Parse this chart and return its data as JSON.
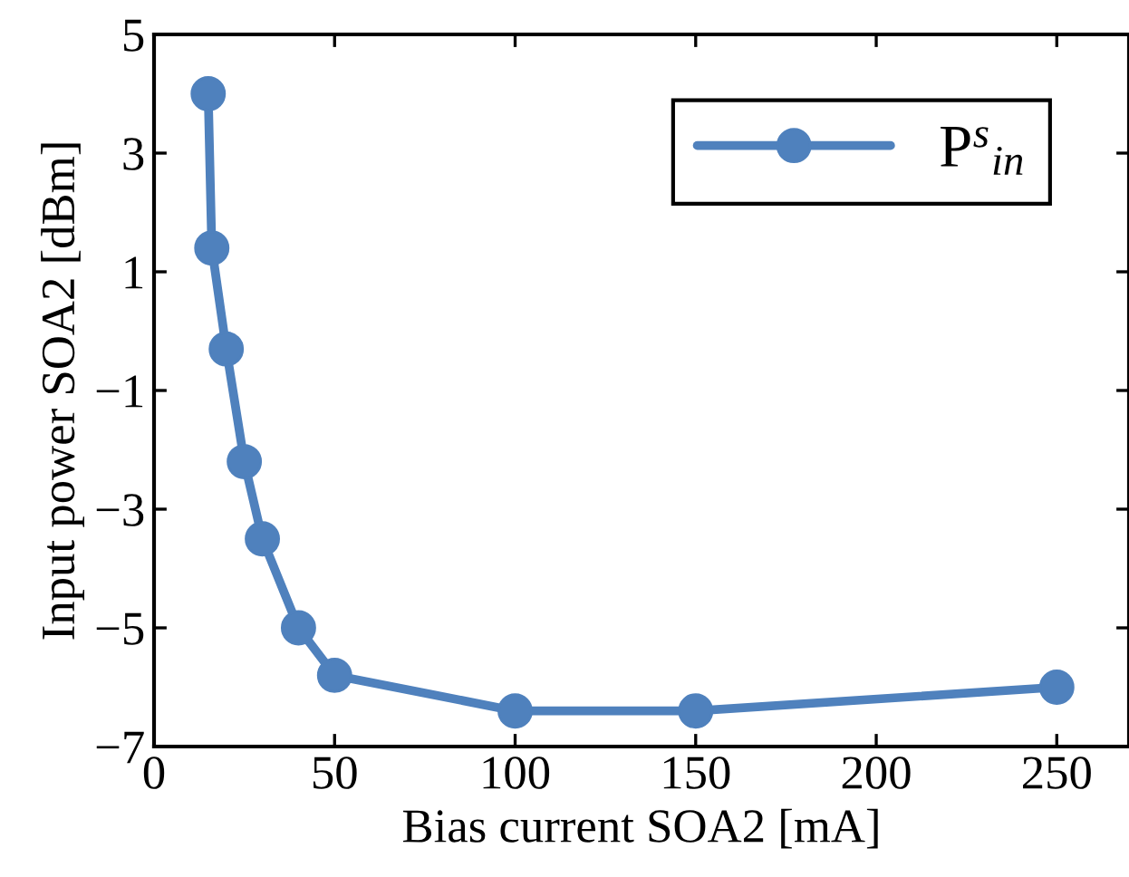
{
  "chart_data": {
    "type": "line",
    "xlabel": "Bias current SOA2 [mA]",
    "ylabel": "Input power SOA2 [dBm]",
    "x": [
      15,
      16,
      20,
      25,
      30,
      40,
      50,
      100,
      150,
      250
    ],
    "series": [
      {
        "name": "P$^{s}$$_{in}$",
        "color": "#4f81bd",
        "values": [
          4.0,
          1.4,
          -0.3,
          -2.2,
          -3.5,
          -5.0,
          -5.8,
          -6.4,
          -6.4,
          -6.0
        ]
      }
    ],
    "xlim": [
      0,
      270
    ],
    "xticks": [
      0,
      50,
      100,
      150,
      200,
      250
    ],
    "ylim": [
      -7,
      5
    ],
    "yticks": [
      {
        "value": -7,
        "label": "−7"
      },
      {
        "value": -5,
        "label": "−5"
      },
      {
        "value": -3,
        "label": "−3"
      },
      {
        "value": -1,
        "label": "−1"
      },
      1,
      3,
      5
    ],
    "grid": false,
    "legend": "top right",
    "marker": "circle",
    "line_style": "solid"
  }
}
